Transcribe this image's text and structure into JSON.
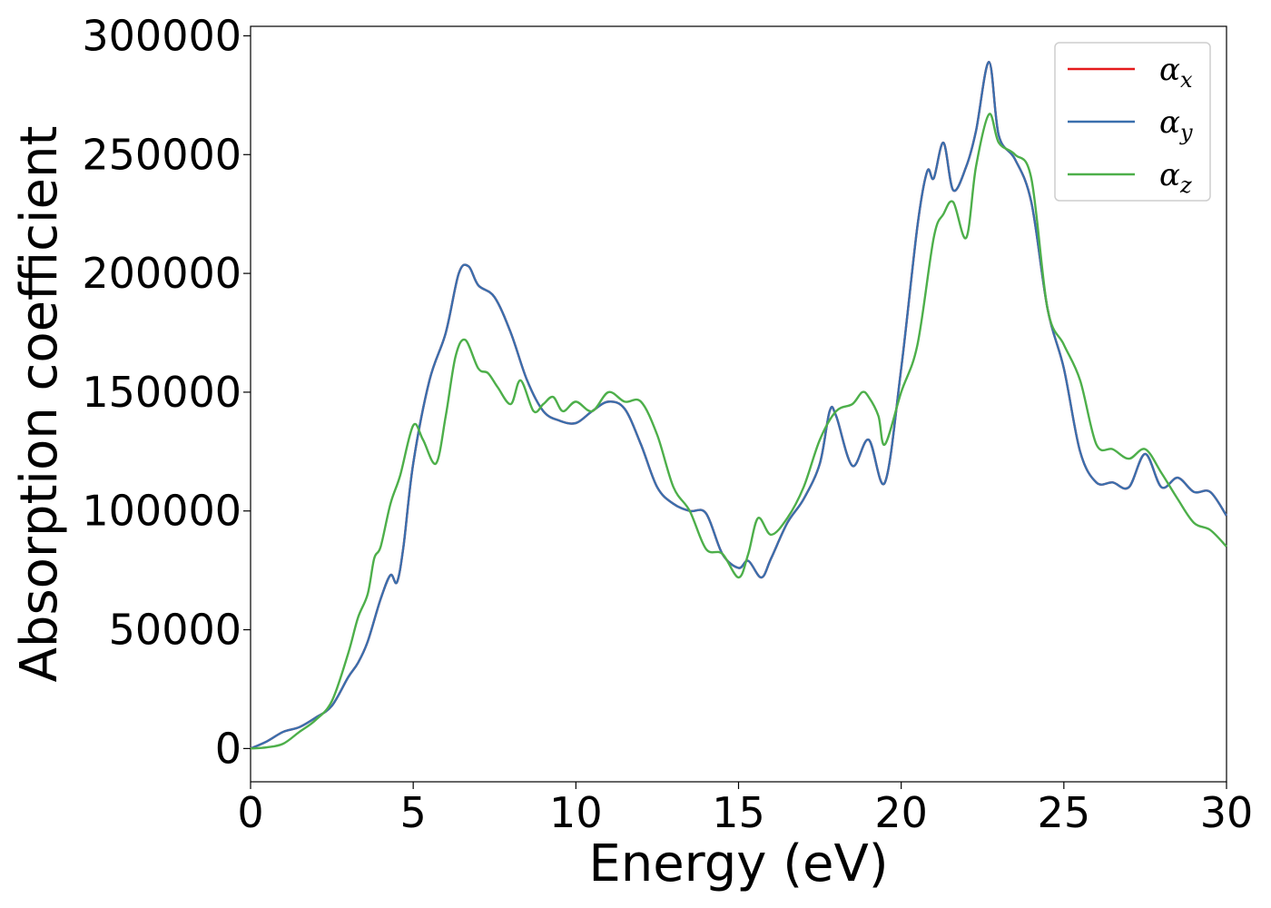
{
  "chart_data": {
    "type": "line",
    "title": "",
    "xlabel": "Energy (eV)",
    "ylabel": "Absorption coefficient",
    "xlim": [
      0,
      30
    ],
    "ylim": [
      -14000,
      304000
    ],
    "xticks": [
      0,
      5,
      10,
      15,
      20,
      25,
      30
    ],
    "yticks": [
      0,
      50000,
      100000,
      150000,
      200000,
      250000,
      300000
    ],
    "grid": false,
    "legend_position": "top-right",
    "series": [
      {
        "name": "αx",
        "legend_symbol": "α",
        "legend_sub": "x",
        "color": "#e41a1c",
        "x": [
          0,
          0.5,
          1,
          1.5,
          2,
          2.5,
          3,
          3.3,
          3.6,
          4.0,
          4.3,
          4.5,
          4.7,
          5.0,
          5.5,
          6.0,
          6.4,
          6.7,
          7.0,
          7.5,
          8.0,
          8.5,
          9.0,
          9.5,
          10.0,
          10.5,
          11.0,
          11.5,
          12.0,
          12.5,
          13.0,
          13.5,
          14.0,
          14.5,
          15.0,
          15.3,
          15.7,
          16.0,
          16.5,
          17.0,
          17.5,
          17.8,
          18.0,
          18.5,
          19.0,
          19.5,
          20.0,
          20.5,
          20.8,
          21.0,
          21.3,
          21.6,
          22.0,
          22.3,
          22.7,
          23.0,
          23.5,
          24.0,
          24.5,
          25.0,
          25.5,
          26.0,
          26.5,
          27.0,
          27.5,
          28.0,
          28.5,
          29.0,
          29.5,
          30.0
        ],
        "y": [
          0,
          3000,
          7000,
          9000,
          13000,
          18000,
          30000,
          36000,
          45000,
          63000,
          73000,
          70000,
          85000,
          120000,
          155000,
          175000,
          200000,
          203000,
          195000,
          190000,
          175000,
          155000,
          142000,
          138000,
          137000,
          142000,
          146000,
          143000,
          128000,
          110000,
          103000,
          100000,
          99000,
          82000,
          76000,
          79000,
          72000,
          80000,
          95000,
          105000,
          120000,
          142000,
          140000,
          119000,
          130000,
          112000,
          160000,
          220000,
          243000,
          240000,
          255000,
          235000,
          245000,
          260000,
          289000,
          258000,
          248000,
          230000,
          185000,
          160000,
          125000,
          112000,
          112000,
          110000,
          124000,
          110000,
          114000,
          108000,
          108000,
          98000
        ]
      },
      {
        "name": "αy",
        "legend_symbol": "α",
        "legend_sub": "y",
        "color": "#3a6fad",
        "x": [
          0,
          0.5,
          1,
          1.5,
          2,
          2.5,
          3,
          3.3,
          3.6,
          4.0,
          4.3,
          4.5,
          4.7,
          5.0,
          5.5,
          6.0,
          6.4,
          6.7,
          7.0,
          7.5,
          8.0,
          8.5,
          9.0,
          9.5,
          10.0,
          10.5,
          11.0,
          11.5,
          12.0,
          12.5,
          13.0,
          13.5,
          14.0,
          14.5,
          15.0,
          15.3,
          15.7,
          16.0,
          16.5,
          17.0,
          17.5,
          17.8,
          18.0,
          18.5,
          19.0,
          19.5,
          20.0,
          20.5,
          20.8,
          21.0,
          21.3,
          21.6,
          22.0,
          22.3,
          22.7,
          23.0,
          23.5,
          24.0,
          24.5,
          25.0,
          25.5,
          26.0,
          26.5,
          27.0,
          27.5,
          28.0,
          28.5,
          29.0,
          29.5,
          30.0
        ],
        "y": [
          0,
          3000,
          7000,
          9000,
          13000,
          18000,
          30000,
          36000,
          45000,
          63000,
          73000,
          70000,
          85000,
          120000,
          155000,
          175000,
          200000,
          203000,
          195000,
          190000,
          175000,
          155000,
          142000,
          138000,
          137000,
          142000,
          146000,
          143000,
          128000,
          110000,
          103000,
          100000,
          99000,
          82000,
          76000,
          79000,
          72000,
          80000,
          95000,
          105000,
          120000,
          142000,
          140000,
          119000,
          130000,
          112000,
          160000,
          220000,
          243000,
          240000,
          255000,
          235000,
          245000,
          260000,
          289000,
          258000,
          248000,
          230000,
          185000,
          160000,
          125000,
          112000,
          112000,
          110000,
          124000,
          110000,
          114000,
          108000,
          108000,
          98000
        ]
      },
      {
        "name": "αz",
        "legend_symbol": "α",
        "legend_sub": "z",
        "color": "#4daf4a",
        "x": [
          0,
          0.5,
          1,
          1.5,
          2,
          2.5,
          3,
          3.3,
          3.6,
          3.8,
          4.0,
          4.3,
          4.6,
          5.0,
          5.3,
          5.7,
          6.0,
          6.3,
          6.6,
          7.0,
          7.3,
          7.6,
          8.0,
          8.3,
          8.7,
          9.0,
          9.3,
          9.6,
          10.0,
          10.5,
          11.0,
          11.5,
          12.0,
          12.5,
          13.0,
          13.5,
          14.0,
          14.5,
          15.0,
          15.3,
          15.6,
          16.0,
          16.5,
          17.0,
          17.5,
          18.0,
          18.5,
          18.8,
          19.0,
          19.3,
          19.5,
          20.0,
          20.5,
          21.0,
          21.3,
          21.6,
          22.0,
          22.3,
          22.7,
          23.0,
          23.5,
          24.0,
          24.5,
          25.0,
          25.5,
          26.0,
          26.5,
          27.0,
          27.5,
          28.0,
          28.5,
          29.0,
          29.5,
          30.0
        ],
        "y": [
          0,
          500,
          2000,
          7000,
          12000,
          20000,
          40000,
          55000,
          65000,
          80000,
          85000,
          103000,
          115000,
          136000,
          130000,
          120000,
          140000,
          165000,
          172000,
          160000,
          158000,
          152000,
          145000,
          155000,
          142000,
          145000,
          148000,
          142000,
          146000,
          142000,
          150000,
          146000,
          146000,
          132000,
          110000,
          100000,
          84000,
          82000,
          72000,
          82000,
          97000,
          90000,
          97000,
          110000,
          130000,
          142000,
          145000,
          150000,
          148000,
          140000,
          128000,
          150000,
          170000,
          215000,
          225000,
          230000,
          215000,
          245000,
          267000,
          255000,
          250000,
          240000,
          185000,
          170000,
          155000,
          128000,
          126000,
          122000,
          126000,
          116000,
          105000,
          95000,
          92000,
          85000
        ]
      }
    ]
  }
}
